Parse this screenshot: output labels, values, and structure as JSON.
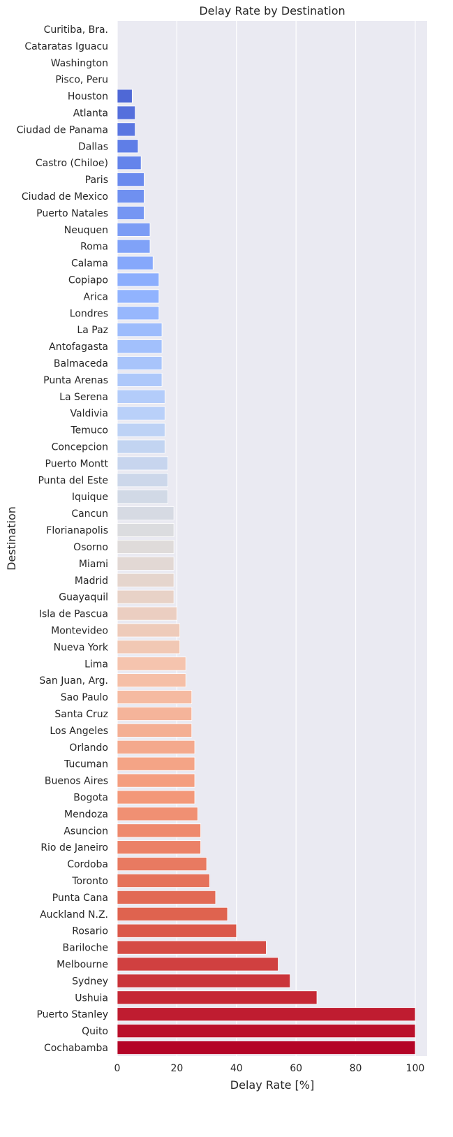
{
  "chart_data": {
    "type": "bar",
    "orientation": "horizontal",
    "title": "Delay Rate by Destination",
    "xlabel": "Delay Rate [%]",
    "ylabel": "Destination",
    "xlim": [
      0,
      104
    ],
    "xticks": [
      0,
      20,
      40,
      60,
      80,
      100
    ],
    "grid": true,
    "colormap": "coolwarm",
    "categories": [
      "Curitiba, Bra.",
      "Cataratas Iguacu",
      "Washington",
      "Pisco, Peru",
      "Houston",
      "Atlanta",
      "Ciudad de Panama",
      "Dallas",
      "Castro (Chiloe)",
      "Paris",
      "Ciudad de Mexico",
      "Puerto Natales",
      "Neuquen",
      "Roma",
      "Calama",
      "Copiapo",
      "Arica",
      "Londres",
      "La Paz",
      "Antofagasta",
      "Balmaceda",
      "Punta Arenas",
      "La Serena",
      "Valdivia",
      "Temuco",
      "Concepcion",
      "Puerto Montt",
      "Punta del Este",
      "Iquique",
      "Cancun",
      "Florianapolis",
      "Osorno",
      "Miami",
      "Madrid",
      "Guayaquil",
      "Isla de Pascua",
      "Montevideo",
      "Nueva York",
      "Lima",
      "San Juan, Arg.",
      "Sao Paulo",
      "Santa Cruz",
      "Los Angeles",
      "Orlando",
      "Tucuman",
      "Buenos Aires",
      "Bogota",
      "Mendoza",
      "Asuncion",
      "Rio de Janeiro",
      "Cordoba",
      "Toronto",
      "Punta Cana",
      "Auckland N.Z.",
      "Rosario",
      "Bariloche",
      "Melbourne",
      "Sydney",
      "Ushuia",
      "Puerto Stanley",
      "Quito",
      "Cochabamba"
    ],
    "values": [
      0,
      0,
      0,
      0,
      5,
      6,
      6,
      7,
      8,
      9,
      9,
      9,
      11,
      11,
      12,
      14,
      14,
      14,
      15,
      15,
      15,
      15,
      16,
      16,
      16,
      16,
      17,
      17,
      17,
      19,
      19,
      19,
      19,
      19,
      19,
      20,
      21,
      21,
      23,
      23,
      25,
      25,
      25,
      26,
      26,
      26,
      26,
      27,
      28,
      28,
      30,
      31,
      33,
      37,
      40,
      50,
      54,
      58,
      67,
      100,
      100,
      100
    ]
  }
}
